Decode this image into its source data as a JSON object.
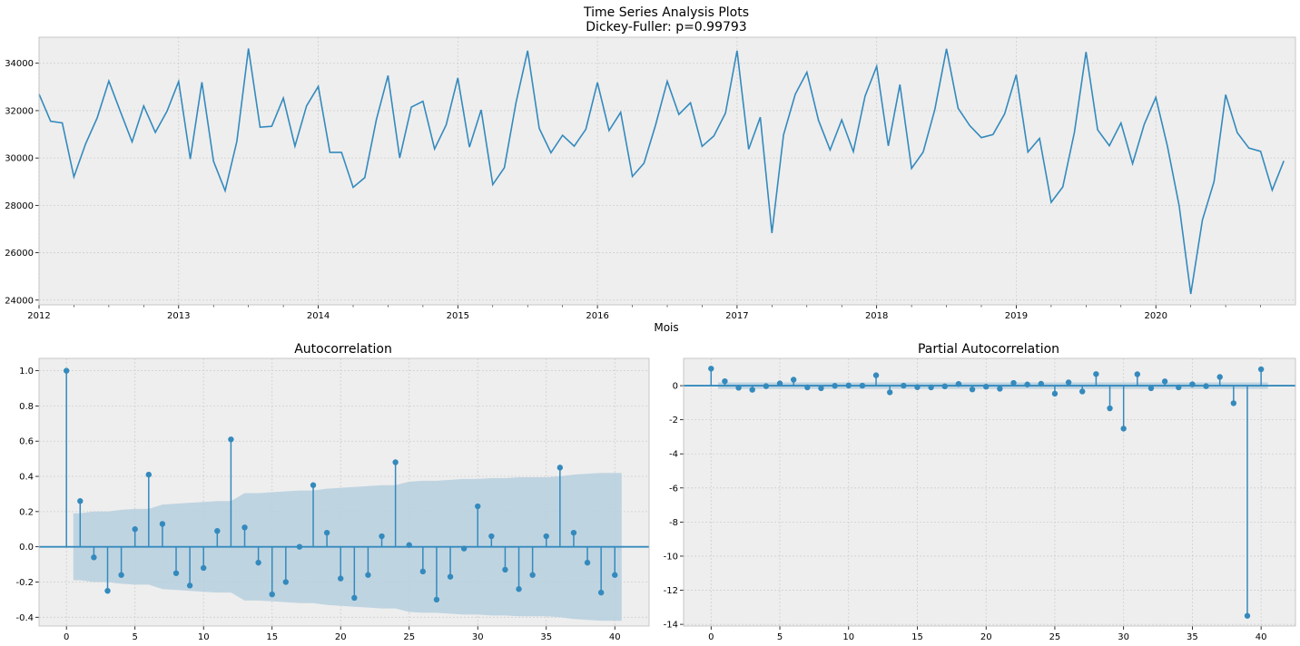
{
  "figure": {
    "title_line1": "Time Series Analysis Plots",
    "title_line2": " Dickey-Fuller: p=0.99793"
  },
  "colors": {
    "background": "#eeeeee",
    "grid": "#cfcfcf",
    "line": "#348abd",
    "confidence": "#b6cfde"
  },
  "chart_data": [
    {
      "type": "line",
      "xlabel": "Mois",
      "x_start": "2012-01",
      "x_end": "2020-12",
      "frequency": "monthly",
      "year_ticks": [
        "2012",
        "2013",
        "2014",
        "2015",
        "2016",
        "2017",
        "2018",
        "2019",
        "2020"
      ],
      "ylim": [
        23800,
        35100
      ],
      "yticks": [
        24000,
        26000,
        28000,
        30000,
        32000,
        34000
      ],
      "grid": true,
      "values": [
        32700,
        31550,
        31480,
        29200,
        30600,
        31700,
        33250,
        31950,
        30680,
        32200,
        31080,
        31980,
        33230,
        29960,
        33200,
        29860,
        28620,
        30700,
        34620,
        31300,
        31340,
        32530,
        30500,
        32200,
        33020,
        30240,
        30240,
        28760,
        29170,
        31620,
        33480,
        30000,
        32150,
        32390,
        30380,
        31400,
        33380,
        30460,
        32030,
        28880,
        29590,
        32340,
        34530,
        31250,
        30220,
        30960,
        30500,
        31210,
        33190,
        31160,
        31930,
        29220,
        29780,
        31400,
        33240,
        31840,
        32330,
        30490,
        30930,
        31890,
        34530,
        30370,
        31720,
        26830,
        30980,
        32690,
        33620,
        31590,
        30340,
        31610,
        30270,
        32610,
        33870,
        30510,
        33100,
        29560,
        30250,
        32040,
        34610,
        32100,
        31370,
        30860,
        30990,
        31860,
        33510,
        30250,
        30830,
        28130,
        28780,
        31080,
        34480,
        31190,
        30520,
        31480,
        29760,
        31420,
        32560,
        30490,
        27980,
        24260,
        27380,
        29000,
        32670,
        31070,
        30420,
        30280,
        28640,
        29880
      ]
    },
    {
      "type": "stem",
      "title": "Autocorrelation",
      "xlim": [
        -2,
        42.5
      ],
      "ylim": [
        -0.45,
        1.07
      ],
      "xticks": [
        0,
        5,
        10,
        15,
        20,
        25,
        30,
        35,
        40
      ],
      "yticks": [
        -0.4,
        -0.2,
        0.0,
        0.2,
        0.4,
        0.6,
        0.8,
        1.0
      ],
      "grid": true,
      "lags": [
        0,
        1,
        2,
        3,
        4,
        5,
        6,
        7,
        8,
        9,
        10,
        11,
        12,
        13,
        14,
        15,
        16,
        17,
        18,
        19,
        20,
        21,
        22,
        23,
        24,
        25,
        26,
        27,
        28,
        29,
        30,
        31,
        32,
        33,
        34,
        35,
        36,
        37,
        38,
        39,
        40
      ],
      "values": [
        1.0,
        0.26,
        -0.06,
        -0.25,
        -0.16,
        0.1,
        0.41,
        0.13,
        -0.15,
        -0.22,
        -0.12,
        0.09,
        0.61,
        0.11,
        -0.09,
        -0.27,
        -0.2,
        0.0,
        0.35,
        0.08,
        -0.18,
        -0.29,
        -0.16,
        0.06,
        0.48,
        0.01,
        -0.14,
        -0.3,
        -0.17,
        -0.01,
        0.23,
        0.06,
        -0.13,
        -0.24,
        -0.16,
        0.06,
        0.45,
        0.08,
        -0.09,
        -0.26,
        -0.16
      ],
      "confidence_upper": [
        0.19,
        0.19,
        0.2,
        0.2,
        0.21,
        0.215,
        0.215,
        0.24,
        0.245,
        0.25,
        0.255,
        0.26,
        0.26,
        0.305,
        0.305,
        0.31,
        0.315,
        0.32,
        0.32,
        0.33,
        0.335,
        0.34,
        0.345,
        0.35,
        0.35,
        0.37,
        0.375,
        0.375,
        0.38,
        0.385,
        0.385,
        0.39,
        0.39,
        0.395,
        0.395,
        0.395,
        0.4,
        0.41,
        0.415,
        0.42,
        0.42
      ]
    },
    {
      "type": "stem",
      "title": "Partial Autocorrelation",
      "xlim": [
        -2,
        42.5
      ],
      "ylim": [
        -14.1,
        1.6
      ],
      "xticks": [
        0,
        5,
        10,
        15,
        20,
        25,
        30,
        35,
        40
      ],
      "yticks": [
        -14,
        -12,
        -10,
        -8,
        -6,
        -4,
        -2,
        0
      ],
      "grid": true,
      "lags": [
        0,
        1,
        2,
        3,
        4,
        5,
        6,
        7,
        8,
        9,
        10,
        11,
        12,
        13,
        14,
        15,
        16,
        17,
        18,
        19,
        20,
        21,
        22,
        23,
        24,
        25,
        26,
        27,
        28,
        29,
        30,
        31,
        32,
        33,
        34,
        35,
        36,
        37,
        38,
        39,
        40
      ],
      "values": [
        1.0,
        0.26,
        -0.12,
        -0.24,
        -0.03,
        0.13,
        0.35,
        -0.1,
        -0.15,
        -0.01,
        0.01,
        0.0,
        0.61,
        -0.39,
        0.0,
        -0.09,
        -0.1,
        -0.04,
        0.1,
        -0.22,
        -0.06,
        -0.18,
        0.16,
        0.07,
        0.11,
        -0.47,
        0.19,
        -0.34,
        0.68,
        -1.33,
        -2.52,
        0.67,
        -0.15,
        0.25,
        -0.1,
        0.08,
        -0.03,
        0.51,
        -1.03,
        -13.5,
        0.96
      ],
      "confidence_upper": 0.19
    }
  ]
}
